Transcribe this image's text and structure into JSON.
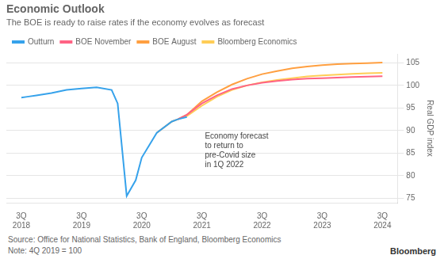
{
  "chart_data": {
    "type": "line",
    "title": "Economic Outlook",
    "subtitle": "The BOE is ready to raise rates if the economy evolves as forecast",
    "y_label": "Real GDP index",
    "source": "Source: Office for National Statistics, Bank of England, Bloomberg Economics",
    "note": "Note: 4Q 2019 = 100",
    "credit": "Bloomberg",
    "annotation": {
      "text": "Economy forecast\nto return to\npre-Covid size\nin 1Q 2022",
      "x": 2021.55,
      "y": 89.5
    },
    "series": [
      {
        "name": "Outturn",
        "x": [
          2018.5,
          2018.6,
          2018.75,
          2019.0,
          2019.25,
          2019.5,
          2019.75,
          2020.0,
          2020.1,
          2020.25,
          2020.4,
          2020.5,
          2020.75,
          2021.0,
          2021.1,
          2021.25
        ],
        "values": [
          97.3,
          97.5,
          97.8,
          98.3,
          99.0,
          99.3,
          99.6,
          99.0,
          96.0,
          75.5,
          79.0,
          84.0,
          89.5,
          92.0,
          92.5,
          93.0
        ]
      },
      {
        "name": "BOE November",
        "x": [
          2021.1,
          2021.25,
          2021.5,
          2021.75,
          2022.0,
          2022.25,
          2022.5,
          2022.75,
          2023.0,
          2023.25,
          2023.5,
          2023.75,
          2024.0,
          2024.25,
          2024.5
        ],
        "values": [
          92.5,
          93.5,
          96.0,
          97.8,
          99.2,
          100.0,
          100.6,
          101.0,
          101.3,
          101.5,
          101.6,
          101.75,
          101.85,
          101.95,
          102.05
        ]
      },
      {
        "name": "BOE August",
        "x": [
          2020.75,
          2021.0,
          2021.1,
          2021.25,
          2021.5,
          2021.75,
          2022.0,
          2022.25,
          2022.5,
          2022.75,
          2023.0,
          2023.25,
          2023.5,
          2023.75,
          2024.0,
          2024.25,
          2024.5
        ],
        "values": [
          89.5,
          92.0,
          92.5,
          93.5,
          96.5,
          98.5,
          100.2,
          101.5,
          102.5,
          103.2,
          103.8,
          104.2,
          104.5,
          104.7,
          104.85,
          104.95,
          105.05
        ]
      },
      {
        "name": "Bloomberg Economics",
        "x": [
          2021.1,
          2021.25,
          2021.5,
          2021.75,
          2022.0,
          2022.25,
          2022.5,
          2022.75,
          2023.0,
          2023.25,
          2023.5,
          2023.75,
          2024.0,
          2024.25,
          2024.5
        ],
        "values": [
          92.5,
          93.2,
          95.5,
          97.5,
          99.0,
          100.0,
          100.7,
          101.2,
          101.6,
          102.0,
          102.2,
          102.4,
          102.55,
          102.7,
          102.8
        ]
      }
    ],
    "xlim": [
      2018.25,
      2024.75
    ],
    "xticks": [
      {
        "value": 2018.5,
        "label": "3Q\n2018"
      },
      {
        "value": 2019.5,
        "label": "3Q\n2019"
      },
      {
        "value": 2020.5,
        "label": "3Q\n2020"
      },
      {
        "value": 2021.5,
        "label": "3Q\n2021"
      },
      {
        "value": 2022.5,
        "label": "3Q\n2022"
      },
      {
        "value": 2023.5,
        "label": "3Q\n2023"
      },
      {
        "value": 2024.5,
        "label": "3Q\n2024"
      }
    ],
    "ylim": [
      74,
      107
    ],
    "yticks": [
      75,
      80,
      85,
      90,
      95,
      100,
      105
    ],
    "grid": true,
    "legend": "top"
  }
}
